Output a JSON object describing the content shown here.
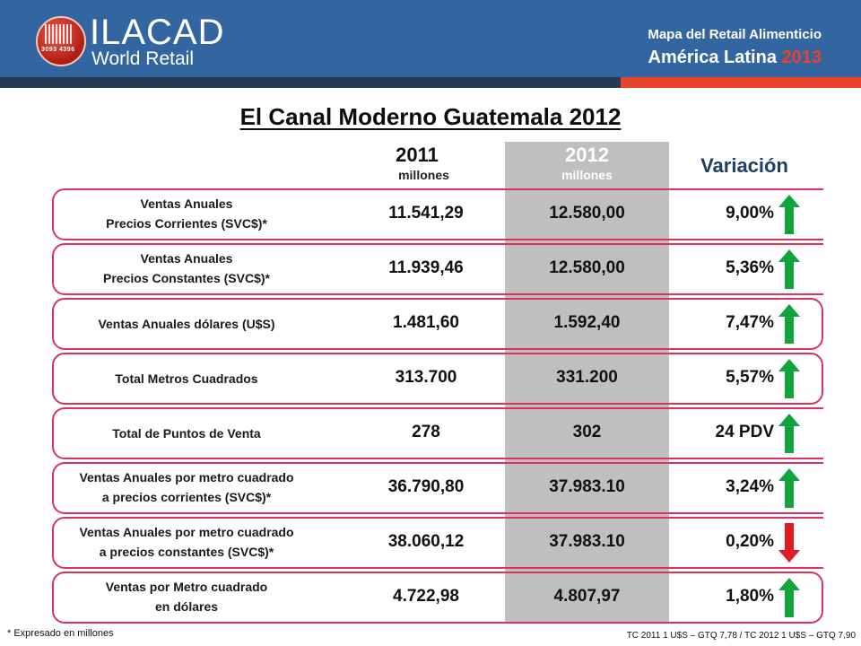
{
  "header": {
    "logo_name": "ILACAD",
    "logo_sub": "World Retail",
    "logo_code": "3093  4396",
    "title": "Mapa del Retail Alimenticio",
    "subtitle_text": "América Latina",
    "subtitle_year": "2013",
    "colors": {
      "band": "#3366a0",
      "accent": "#e8432f"
    }
  },
  "title": "El Canal Moderno Guatemala 2012",
  "columns": {
    "y2011": "2011",
    "y2011_unit": "millones",
    "y2012": "2012",
    "y2012_unit": "millones",
    "variation": "Variación"
  },
  "rows": [
    {
      "label1": "Ventas Anuales",
      "label2": "Precios Corrientes (SVC$)*",
      "v2011": "11.541,29",
      "v2012": "12.580,00",
      "variation": "9,00%",
      "direction": "up"
    },
    {
      "label1": "Ventas Anuales",
      "label2": "Precios Constantes (SVC$)*",
      "v2011": "11.939,46",
      "v2012": "12.580,00",
      "variation": "5,36%",
      "direction": "up"
    },
    {
      "label1": "Ventas Anuales dólares  (U$S)",
      "label2": "",
      "v2011": "1.481,60",
      "v2012": "1.592,40",
      "variation": "7,47%",
      "direction": "up"
    },
    {
      "label1": "Total Metros Cuadrados",
      "label2": "",
      "v2011": "313.700",
      "v2012": "331.200",
      "variation": "5,57%",
      "direction": "up"
    },
    {
      "label1": "Total de Puntos de Venta",
      "label2": "",
      "v2011": "278",
      "v2012": "302",
      "variation": "24 PDV",
      "direction": "up"
    },
    {
      "label1": "Ventas Anuales por metro cuadrado",
      "label2": "a precios corrientes (SVC$)*",
      "v2011": "36.790,80",
      "v2012": "37.983.10",
      "variation": "3,24%",
      "direction": "up"
    },
    {
      "label1": "Ventas Anuales por metro cuadrado",
      "label2": "a precios constantes (SVC$)*",
      "v2011": "38.060,12",
      "v2012": "37.983.10",
      "variation": "0,20%",
      "direction": "down"
    },
    {
      "label1": "Ventas  por  Metro cuadrado",
      "label2": "en dólares",
      "v2011": "4.722,98",
      "v2012": "4.807,97",
      "variation": "1,80%",
      "direction": "up"
    }
  ],
  "footer": {
    "note": "* Expresado en millones",
    "exchange": "TC 2011 1 U$S – GTQ 7,78  / TC 2012 1 U$S – GTQ 7,90"
  },
  "arrow_colors": {
    "up": "#11a33c",
    "down": "#e01b24"
  }
}
